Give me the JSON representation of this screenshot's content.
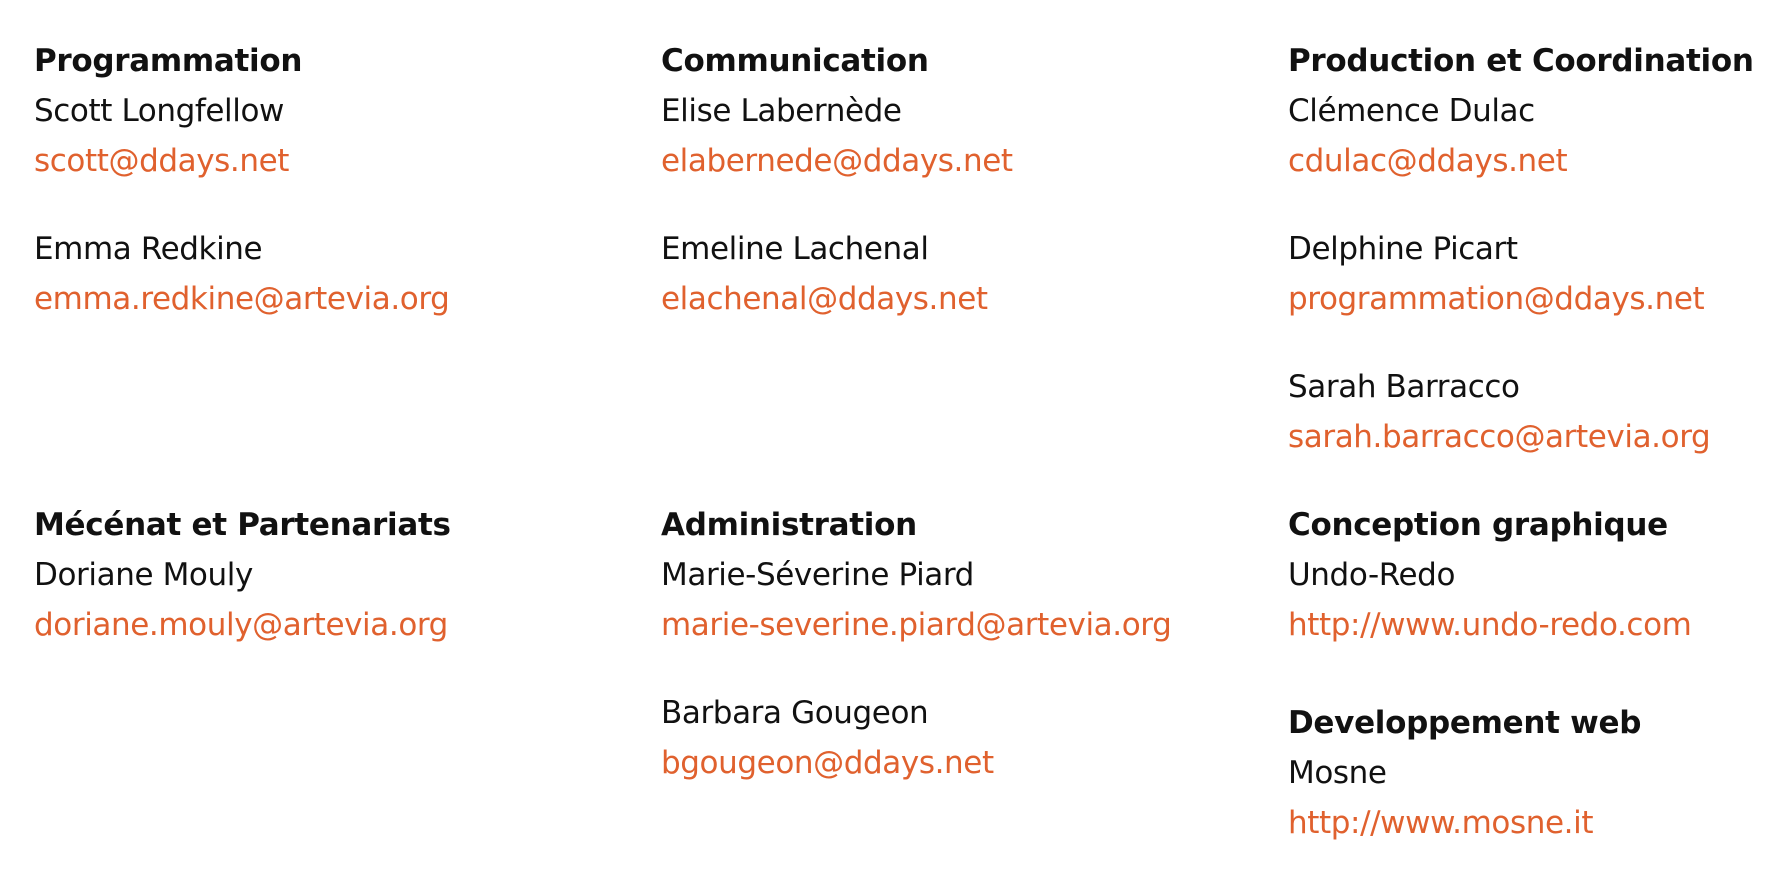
{
  "accent_color": "#e0612e",
  "columns": [
    {
      "row1": {
        "heading": "Programmation",
        "contacts": [
          {
            "name": "Scott Longfellow",
            "link": "scott@ddays.net"
          },
          {
            "name": "Emma Redkine",
            "link": "emma.redkine@artevia.org"
          }
        ]
      },
      "row2": [
        {
          "heading": "Mécénat et Partenariats",
          "contacts": [
            {
              "name": "Doriane Mouly",
              "link": "doriane.mouly@artevia.org"
            }
          ]
        }
      ]
    },
    {
      "row1": {
        "heading": "Communication",
        "contacts": [
          {
            "name": "Elise Labernède",
            "link": "elabernede@ddays.net"
          },
          {
            "name": "Emeline Lachenal",
            "link": "elachenal@ddays.net"
          }
        ]
      },
      "row2": [
        {
          "heading": "Administration",
          "contacts": [
            {
              "name": "Marie-Séverine Piard",
              "link": "marie-severine.piard@artevia.org"
            },
            {
              "name": "Barbara Gougeon",
              "link": "bgougeon@ddays.net"
            }
          ]
        }
      ]
    },
    {
      "row1": {
        "heading": "Production et Coordination",
        "contacts": [
          {
            "name": "Clémence Dulac",
            "link": "cdulac@ddays.net"
          },
          {
            "name": "Delphine Picart",
            "link": "programmation@ddays.net"
          },
          {
            "name": "Sarah Barracco",
            "link": "sarah.barracco@artevia.org"
          }
        ]
      },
      "row2": [
        {
          "heading": "Conception graphique",
          "contacts": [
            {
              "name": "Undo-Redo",
              "link": "http://www.undo-redo.com"
            }
          ]
        },
        {
          "heading": "Developpement web",
          "contacts": [
            {
              "name": "Mosne",
              "link": "http://www.mosne.it"
            }
          ]
        }
      ]
    }
  ]
}
